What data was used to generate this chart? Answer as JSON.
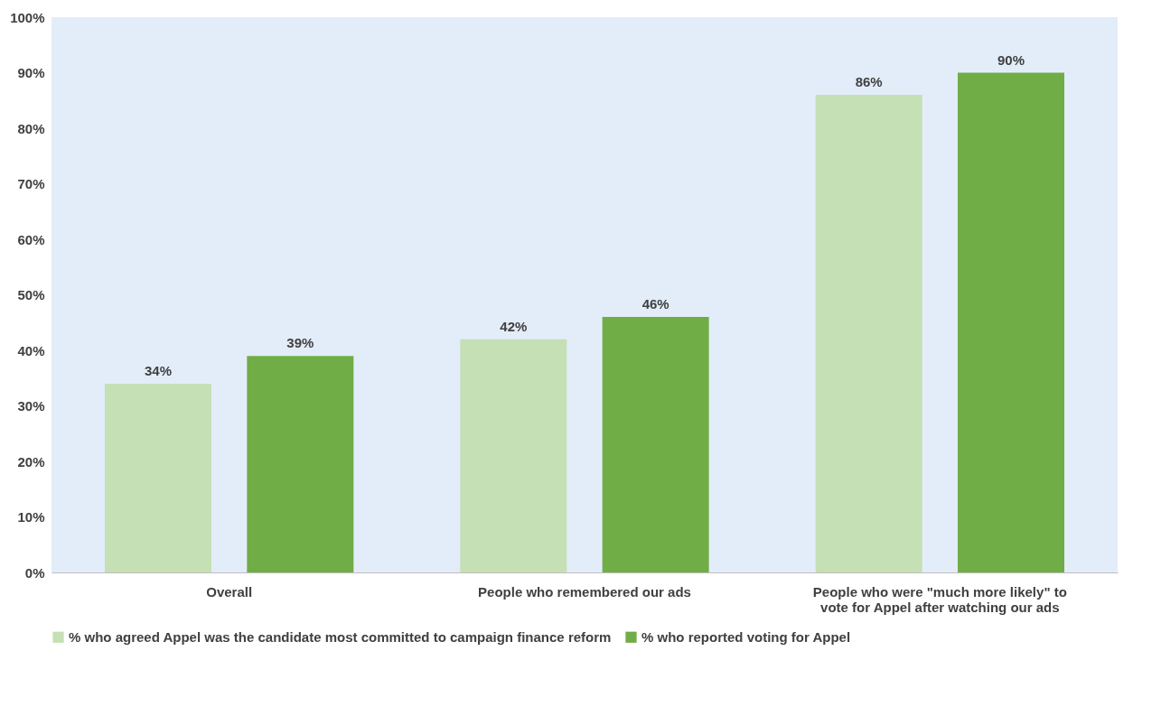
{
  "chart_data": {
    "type": "bar",
    "categories": [
      "Overall",
      "People who remembered our ads",
      "People who were \"much more likely\" to\nvote for Appel after watching our ads"
    ],
    "series": [
      {
        "name": "% who agreed Appel was the candidate most committed to campaign finance reform",
        "color": "#c5e0b4",
        "values": [
          34,
          42,
          86
        ],
        "value_labels": [
          "34%",
          "42%",
          "86%"
        ]
      },
      {
        "name": "% who reported voting for Appel",
        "color": "#70ad47",
        "values": [
          39,
          46,
          90
        ],
        "value_labels": [
          "39%",
          "46%",
          "90%"
        ]
      }
    ],
    "ylim": [
      0,
      100
    ],
    "yticks": [
      {
        "value": 0,
        "label": "0%"
      },
      {
        "value": 10,
        "label": "10%"
      },
      {
        "value": 20,
        "label": "20%"
      },
      {
        "value": 30,
        "label": "30%"
      },
      {
        "value": 40,
        "label": "40%"
      },
      {
        "value": 50,
        "label": "50%"
      },
      {
        "value": 60,
        "label": "60%"
      },
      {
        "value": 70,
        "label": "70%"
      },
      {
        "value": 80,
        "label": "80%"
      },
      {
        "value": 90,
        "label": "90%"
      },
      {
        "value": 100,
        "label": "100%"
      }
    ],
    "grid": false,
    "legend": "bottom"
  }
}
